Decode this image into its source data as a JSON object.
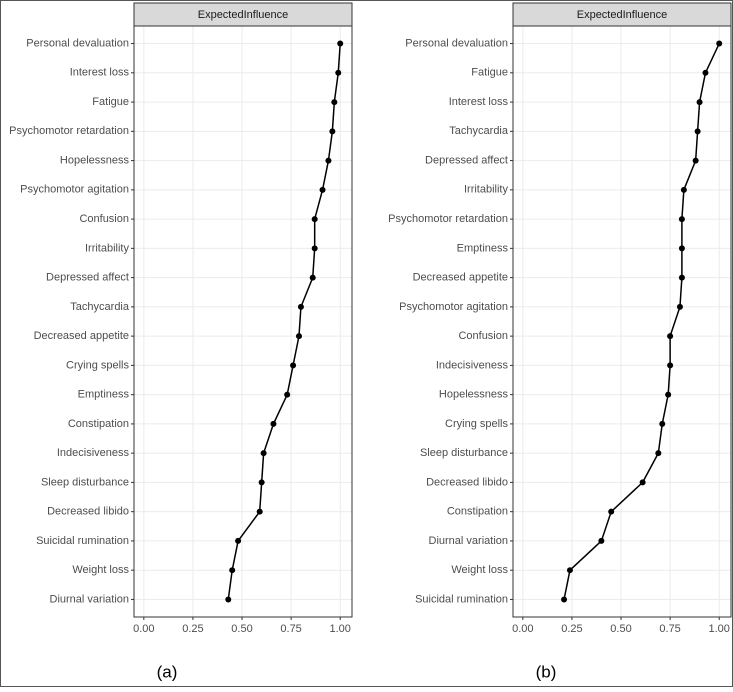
{
  "chart_data": [
    {
      "type": "line",
      "orientation": "horizontal",
      "strip_title": "ExpectedInfluence",
      "caption": "(a)",
      "color": "#000000",
      "grid": true,
      "categories": [
        "Personal devaluation",
        "Interest loss",
        "Fatigue",
        "Psychomotor retardation",
        "Hopelessness",
        "Psychomotor agitation",
        "Confusion",
        "Irritability",
        "Depressed affect",
        "Tachycardia",
        "Decreased appetite",
        "Crying spells",
        "Emptiness",
        "Constipation",
        "Indecisiveness",
        "Sleep disturbance",
        "Decreased libido",
        "Suicidal rumination",
        "Weight loss",
        "Diurnal variation"
      ],
      "values": [
        1.0,
        0.99,
        0.97,
        0.96,
        0.94,
        0.91,
        0.87,
        0.87,
        0.86,
        0.8,
        0.79,
        0.76,
        0.73,
        0.66,
        0.61,
        0.6,
        0.59,
        0.48,
        0.45,
        0.43
      ],
      "xlim": [
        -0.05,
        1.06
      ],
      "xticks": [
        {
          "value": 0,
          "label": "0.00"
        },
        {
          "value": 0.25,
          "label": "0.25"
        },
        {
          "value": 0.5,
          "label": "0.50"
        },
        {
          "value": 0.75,
          "label": "0.75"
        },
        {
          "value": 1,
          "label": "1.00"
        }
      ]
    },
    {
      "type": "line",
      "orientation": "horizontal",
      "strip_title": "ExpectedInfluence",
      "caption": "(b)",
      "color": "#000000",
      "grid": true,
      "categories": [
        "Personal devaluation",
        "Fatigue",
        "Interest loss",
        "Tachycardia",
        "Depressed affect",
        "Irritability",
        "Psychomotor retardation",
        "Emptiness",
        "Decreased appetite",
        "Psychomotor agitation",
        "Confusion",
        "Indecisiveness",
        "Hopelessness",
        "Crying spells",
        "Sleep disturbance",
        "Decreased libido",
        "Constipation",
        "Diurnal variation",
        "Weight loss",
        "Suicidal rumination"
      ],
      "values": [
        1.0,
        0.93,
        0.9,
        0.89,
        0.88,
        0.82,
        0.81,
        0.81,
        0.81,
        0.8,
        0.75,
        0.75,
        0.74,
        0.71,
        0.69,
        0.61,
        0.45,
        0.4,
        0.24,
        0.21
      ],
      "xlim": [
        -0.05,
        1.06
      ],
      "xticks": [
        {
          "value": 0,
          "label": "0.00"
        },
        {
          "value": 0.25,
          "label": "0.25"
        },
        {
          "value": 0.5,
          "label": "0.50"
        },
        {
          "value": 0.75,
          "label": "0.75"
        },
        {
          "value": 1,
          "label": "1.00"
        }
      ]
    }
  ]
}
